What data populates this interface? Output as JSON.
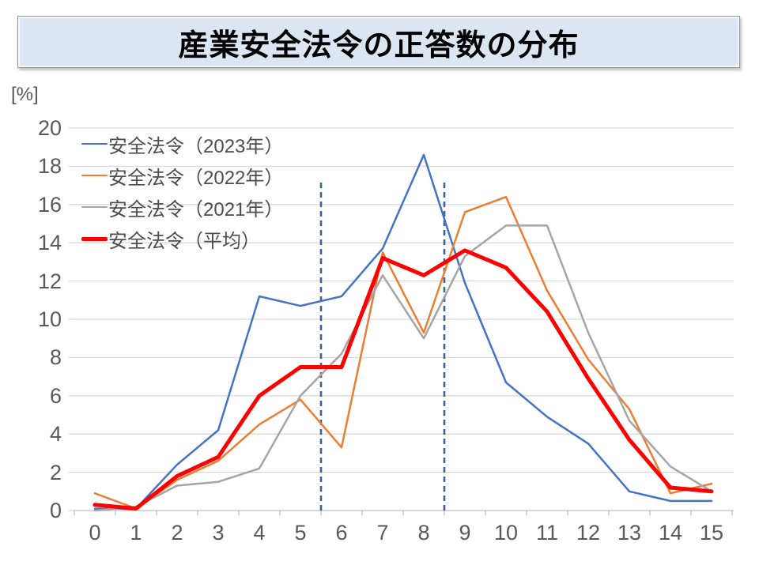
{
  "title": "産業安全法令の正答数の分布",
  "axis": {
    "unit_label": "[%]",
    "y_ticks": [
      0,
      2,
      4,
      6,
      8,
      10,
      12,
      14,
      16,
      18,
      20
    ],
    "x_ticks": [
      0,
      1,
      2,
      3,
      4,
      5,
      6,
      7,
      8,
      9,
      10,
      11,
      12,
      13,
      14,
      15
    ]
  },
  "colors": {
    "grid": "#d9d9d9",
    "axis_line": "#bfbfbf",
    "tick_label": "#595959",
    "reference_line": "#3a6395",
    "banner_fill": "#dce6f2"
  },
  "chart_data": {
    "type": "line",
    "title": "産業安全法令の正答数の分布",
    "ylabel": "[%]",
    "x": [
      0,
      1,
      2,
      3,
      4,
      5,
      6,
      7,
      8,
      9,
      10,
      11,
      12,
      13,
      14,
      15
    ],
    "ylim": [
      0,
      20
    ],
    "grid": true,
    "legend_position": "top-left",
    "series": [
      {
        "name": "安全法令（2023年）",
        "color": "#4472C4",
        "width": 2.5,
        "values": [
          0.1,
          0.1,
          2.4,
          4.2,
          11.2,
          10.7,
          11.2,
          13.7,
          18.6,
          11.9,
          6.7,
          4.9,
          3.5,
          1.0,
          0.5,
          0.5
        ]
      },
      {
        "name": "安全法令（2022年）",
        "color": "#ED7D31",
        "width": 2.5,
        "values": [
          0.9,
          0.1,
          1.6,
          2.6,
          4.5,
          5.8,
          3.3,
          13.5,
          9.3,
          15.6,
          16.4,
          11.5,
          7.9,
          5.3,
          0.9,
          1.4
        ]
      },
      {
        "name": "安全法令（2021年）",
        "color": "#A5A5A5",
        "width": 2.5,
        "values": [
          0.0,
          0.2,
          1.3,
          1.5,
          2.2,
          6.0,
          8.2,
          12.3,
          9.0,
          13.3,
          14.9,
          14.9,
          9.3,
          4.7,
          2.3,
          1.0
        ]
      },
      {
        "name": "安全法令（平均）",
        "color": "#FF0000",
        "width": 5,
        "values": [
          0.3,
          0.1,
          1.8,
          2.8,
          6.0,
          7.5,
          7.5,
          13.2,
          12.3,
          13.6,
          12.7,
          10.4,
          6.9,
          3.7,
          1.2,
          1.0
        ]
      }
    ],
    "reference_lines": {
      "x_positions": [
        5.5,
        8.5
      ],
      "top_value": 17.3,
      "style": "dashed",
      "color": "#3a6395"
    }
  }
}
